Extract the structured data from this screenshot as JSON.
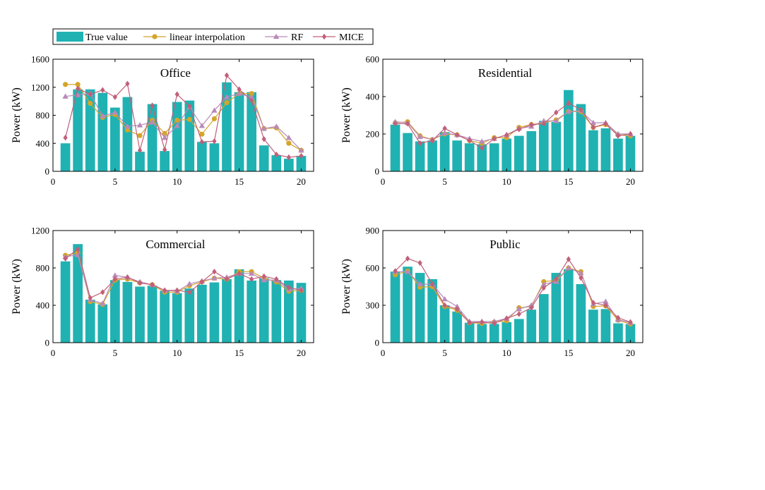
{
  "legend": {
    "entries": [
      {
        "label": "True value",
        "kind": "bar",
        "color": "#20b2b2"
      },
      {
        "label": "linear interpolation",
        "kind": "line",
        "marker": "circle",
        "color": "#d4a52a"
      },
      {
        "label": "RF",
        "kind": "line",
        "marker": "triangle",
        "color": "#b98ab8"
      },
      {
        "label": "MICE",
        "kind": "line",
        "marker": "diamond",
        "color": "#c0607a"
      }
    ]
  },
  "chart_data": [
    {
      "type": "bar",
      "title": "Office",
      "xlabel": "",
      "ylabel": "Power (kW)",
      "xlim": [
        0,
        21
      ],
      "ylim": [
        0,
        1600
      ],
      "xticks": [
        0,
        5,
        10,
        15,
        20
      ],
      "yticks": [
        0,
        400,
        800,
        1200,
        1600
      ],
      "x": [
        1,
        2,
        3,
        4,
        5,
        6,
        7,
        8,
        9,
        10,
        11,
        12,
        13,
        14,
        15,
        16,
        17,
        18,
        19,
        20
      ],
      "series": [
        {
          "name": "True value",
          "kind": "bar",
          "values": [
            400,
            1170,
            1170,
            1120,
            910,
            1060,
            280,
            960,
            290,
            990,
            1010,
            420,
            400,
            1270,
            1130,
            1130,
            370,
            230,
            180,
            220
          ]
        },
        {
          "name": "linear interpolation",
          "kind": "line",
          "values": [
            1240,
            1240,
            970,
            770,
            810,
            590,
            510,
            730,
            540,
            730,
            740,
            530,
            750,
            980,
            1110,
            1110,
            610,
            620,
            400,
            300
          ]
        },
        {
          "name": "RF",
          "kind": "line",
          "values": [
            1070,
            1090,
            1110,
            790,
            840,
            640,
            660,
            700,
            480,
            650,
            920,
            650,
            870,
            1060,
            1110,
            1060,
            610,
            640,
            480,
            300
          ]
        },
        {
          "name": "MICE",
          "kind": "line",
          "values": [
            480,
            1180,
            1100,
            1160,
            1060,
            1250,
            300,
            940,
            310,
            1100,
            930,
            420,
            430,
            1370,
            1170,
            1010,
            460,
            240,
            200,
            220
          ]
        }
      ]
    },
    {
      "type": "bar",
      "title": "Residential",
      "xlabel": "",
      "ylabel": "Power (kW)",
      "xlim": [
        0,
        21
      ],
      "ylim": [
        0,
        600
      ],
      "xticks": [
        0,
        5,
        10,
        15,
        20
      ],
      "yticks": [
        0,
        200,
        400,
        600
      ],
      "x": [
        1,
        2,
        3,
        4,
        5,
        6,
        7,
        8,
        9,
        10,
        11,
        12,
        13,
        14,
        15,
        16,
        17,
        18,
        19,
        20
      ],
      "series": [
        {
          "name": "True value",
          "kind": "bar",
          "values": [
            250,
            205,
            160,
            165,
            210,
            165,
            150,
            145,
            150,
            175,
            190,
            215,
            270,
            265,
            435,
            360,
            220,
            230,
            175,
            190
          ]
        },
        {
          "name": "linear interpolation",
          "kind": "line",
          "values": [
            260,
            265,
            190,
            170,
            200,
            195,
            165,
            150,
            180,
            180,
            235,
            250,
            260,
            275,
            320,
            320,
            235,
            250,
            195,
            190
          ]
        },
        {
          "name": "RF",
          "kind": "line",
          "values": [
            265,
            260,
            185,
            170,
            205,
            195,
            175,
            160,
            175,
            195,
            230,
            240,
            270,
            270,
            320,
            325,
            260,
            260,
            200,
            200
          ]
        },
        {
          "name": "MICE",
          "kind": "line",
          "values": [
            255,
            255,
            150,
            165,
            230,
            195,
            165,
            125,
            175,
            195,
            225,
            250,
            255,
            315,
            365,
            330,
            235,
            255,
            190,
            200
          ]
        }
      ]
    },
    {
      "type": "bar",
      "title": "Commercial",
      "xlabel": "",
      "ylabel": "Power (kW)",
      "xlim": [
        0,
        21
      ],
      "ylim": [
        0,
        1200
      ],
      "xticks": [
        0,
        5,
        10,
        15,
        20
      ],
      "yticks": [
        0,
        400,
        800,
        1200
      ],
      "x": [
        1,
        2,
        3,
        4,
        5,
        6,
        7,
        8,
        9,
        10,
        11,
        12,
        13,
        14,
        15,
        16,
        17,
        18,
        19,
        20
      ],
      "series": [
        {
          "name": "True value",
          "kind": "bar",
          "values": [
            870,
            1055,
            460,
            410,
            670,
            650,
            600,
            610,
            555,
            530,
            580,
            620,
            645,
            680,
            785,
            665,
            690,
            670,
            665,
            640
          ]
        },
        {
          "name": "linear interpolation",
          "kind": "line",
          "values": [
            935,
            960,
            440,
            410,
            670,
            680,
            640,
            620,
            540,
            540,
            610,
            650,
            690,
            680,
            760,
            760,
            690,
            650,
            550,
            560
          ]
        },
        {
          "name": "RF",
          "kind": "line",
          "values": [
            920,
            940,
            460,
            420,
            720,
            700,
            650,
            620,
            560,
            550,
            630,
            660,
            690,
            700,
            740,
            740,
            670,
            670,
            570,
            580
          ]
        },
        {
          "name": "MICE",
          "kind": "line",
          "values": [
            900,
            1000,
            480,
            540,
            680,
            700,
            640,
            620,
            560,
            560,
            540,
            650,
            760,
            680,
            740,
            680,
            710,
            680,
            590,
            560
          ]
        }
      ]
    },
    {
      "type": "bar",
      "title": "Public",
      "xlabel": "",
      "ylabel": "Power (kW)",
      "xlim": [
        0,
        21
      ],
      "ylim": [
        0,
        900
      ],
      "xticks": [
        0,
        5,
        10,
        15,
        20
      ],
      "yticks": [
        0,
        300,
        600,
        900
      ],
      "x": [
        1,
        2,
        3,
        4,
        5,
        6,
        7,
        8,
        9,
        10,
        11,
        12,
        13,
        14,
        15,
        16,
        17,
        18,
        19,
        20
      ],
      "series": [
        {
          "name": "True value",
          "kind": "bar",
          "values": [
            570,
            610,
            560,
            510,
            300,
            250,
            160,
            150,
            150,
            165,
            190,
            265,
            390,
            560,
            590,
            470,
            265,
            270,
            155,
            150
          ]
        },
        {
          "name": "linear interpolation",
          "kind": "line",
          "values": [
            545,
            575,
            445,
            450,
            290,
            260,
            160,
            155,
            165,
            175,
            280,
            290,
            490,
            500,
            600,
            570,
            290,
            295,
            180,
            150
          ]
        },
        {
          "name": "RF",
          "kind": "line",
          "values": [
            570,
            570,
            470,
            470,
            350,
            290,
            170,
            170,
            170,
            195,
            270,
            300,
            470,
            490,
            600,
            560,
            310,
            330,
            185,
            160
          ]
        },
        {
          "name": "MICE",
          "kind": "line",
          "values": [
            575,
            675,
            640,
            470,
            300,
            270,
            160,
            165,
            155,
            195,
            230,
            280,
            440,
            510,
            670,
            520,
            320,
            300,
            200,
            165
          ]
        }
      ]
    }
  ]
}
